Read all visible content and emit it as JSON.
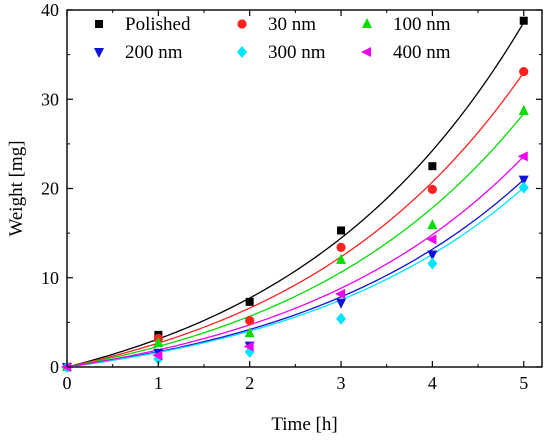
{
  "chart_data": {
    "type": "scatter",
    "title": "",
    "xlabel": "Time [h]",
    "ylabel": "Weight [mg]",
    "xlim": [
      0,
      5.2
    ],
    "ylim": [
      0,
      40
    ],
    "xticks": [
      0,
      1,
      2,
      3,
      4,
      5
    ],
    "yticks": [
      0,
      10,
      20,
      30,
      40
    ],
    "xtick_labels": [
      "0",
      "1",
      "2",
      "3",
      "4",
      "5"
    ],
    "ytick_labels": [
      "0",
      "10",
      "20",
      "30",
      "40"
    ],
    "grid": false,
    "legend_position": "top",
    "fit_lines": true,
    "series": [
      {
        "name": "Polished",
        "marker": "square",
        "color": "#000000",
        "x": [
          0,
          1,
          2,
          3,
          4,
          5
        ],
        "y": [
          0,
          3.6,
          7.3,
          15.3,
          22.5,
          38.8
        ],
        "fit_end": 38.6
      },
      {
        "name": "30 nm",
        "marker": "circle",
        "color": "#ff2020",
        "x": [
          0,
          1,
          2,
          3,
          4,
          5
        ],
        "y": [
          0,
          3.2,
          5.2,
          13.4,
          19.9,
          33.1
        ],
        "fit_end": 33.0
      },
      {
        "name": "100 nm",
        "marker": "triangle-up",
        "color": "#00dd00",
        "x": [
          0,
          1,
          2,
          3,
          4,
          5
        ],
        "y": [
          0,
          2.7,
          3.8,
          12.0,
          15.9,
          28.7
        ],
        "fit_end": 28.4
      },
      {
        "name": "200 nm",
        "marker": "triangle-down",
        "color": "#1010dd",
        "x": [
          0,
          1,
          2,
          3,
          4,
          5
        ],
        "y": [
          0,
          1.6,
          2.4,
          7.2,
          12.6,
          21.0
        ],
        "fit_end": 21.0
      },
      {
        "name": "300 nm",
        "marker": "diamond",
        "color": "#00e5ff",
        "x": [
          0,
          1,
          2,
          3,
          4,
          5
        ],
        "y": [
          0,
          0.9,
          1.7,
          5.4,
          11.6,
          20.1
        ],
        "fit_end": 20.1
      },
      {
        "name": "400 nm",
        "marker": "triangle-left",
        "color": "#ee00ee",
        "x": [
          0,
          1,
          2,
          3,
          4,
          5
        ],
        "y": [
          0,
          1.3,
          2.3,
          8.2,
          14.3,
          23.6
        ],
        "fit_end": 23.6
      }
    ]
  }
}
